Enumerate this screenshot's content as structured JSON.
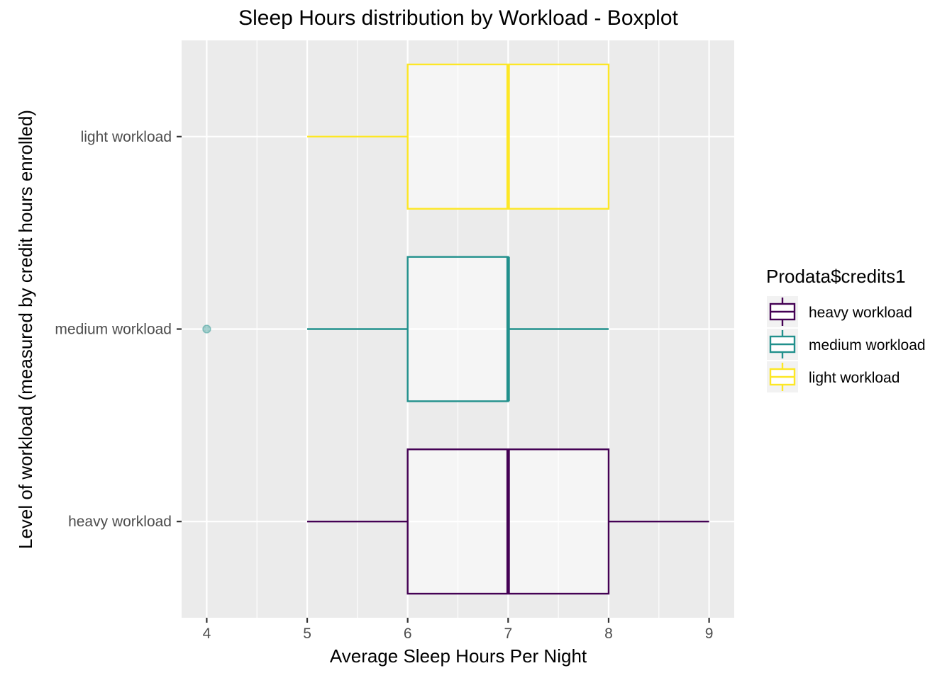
{
  "chart_data": {
    "type": "boxplot",
    "orientation": "horizontal",
    "title": "Sleep Hours distribution by Workload - Boxplot",
    "xlabel": "Average Sleep Hours Per Night",
    "ylabel": "Level of workload (measured by credit hours enrolled)",
    "xlim": [
      3.75,
      9.25
    ],
    "xticks": [
      4,
      5,
      6,
      7,
      8,
      9
    ],
    "grid": true,
    "legend": {
      "title": "Prodata$credits1",
      "position": "right",
      "entries": [
        "heavy workload",
        "medium workload",
        "light workload"
      ]
    },
    "categories": [
      "heavy workload",
      "medium workload",
      "light workload"
    ],
    "series": [
      {
        "name": "heavy workload",
        "color": "#440154",
        "min": 5,
        "q1": 6,
        "median": 7,
        "q3": 8,
        "max": 9,
        "outliers": []
      },
      {
        "name": "medium workload",
        "color": "#21908C",
        "min": 5,
        "q1": 6,
        "median": 7,
        "q3": 7,
        "max": 8,
        "outliers": [
          4
        ]
      },
      {
        "name": "light workload",
        "color": "#FDE725",
        "min": 5,
        "q1": 6,
        "median": 7,
        "q3": 8,
        "max": 8,
        "outliers": []
      }
    ]
  }
}
